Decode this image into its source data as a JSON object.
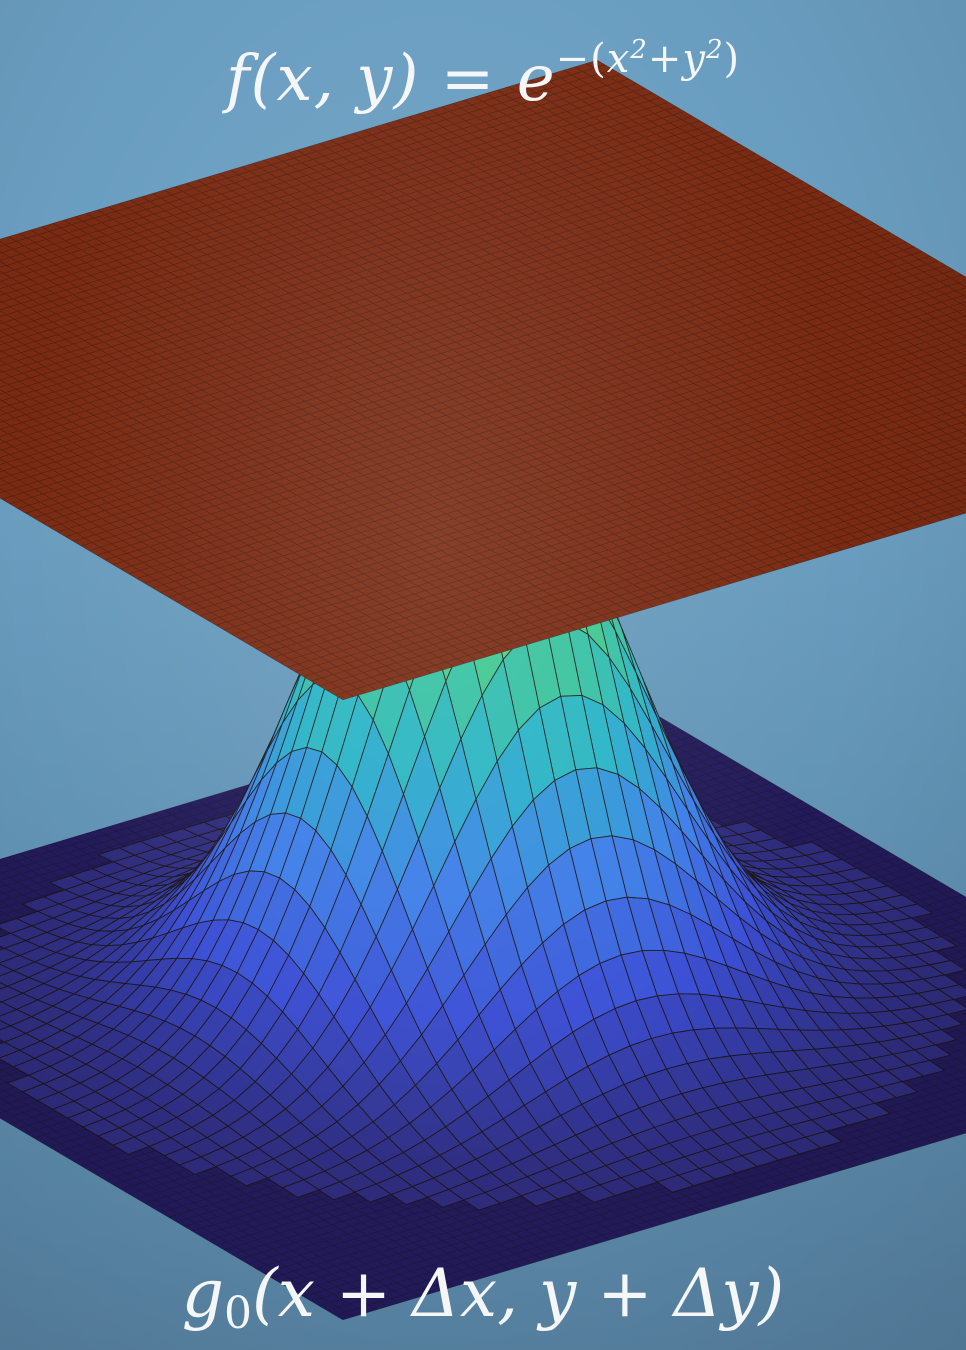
{
  "equations": {
    "top": {
      "lhs": "f(x, y)",
      "equals": "=",
      "base": "e",
      "exponent_open": "−(",
      "x": "x",
      "x_power": "2",
      "plus": "+",
      "y": "y",
      "y_power": "2",
      "exponent_close": ")"
    },
    "bottom": {
      "func": "g",
      "subscript": "0",
      "args": "(x + Δx, y + Δy)"
    }
  },
  "colors": {
    "top_plane": "#7a2a12",
    "bottom_plane": "#221a5a",
    "mesh_line": "#1a1410",
    "colormap": [
      "#2e2a78",
      "#3b4fd6",
      "#3d7fe8",
      "#27b3c8",
      "#3fc890",
      "#9cd65a",
      "#f2c84a"
    ]
  },
  "surface": {
    "function": "exp(-(x^2+y^2))",
    "grid_lines": 42
  }
}
